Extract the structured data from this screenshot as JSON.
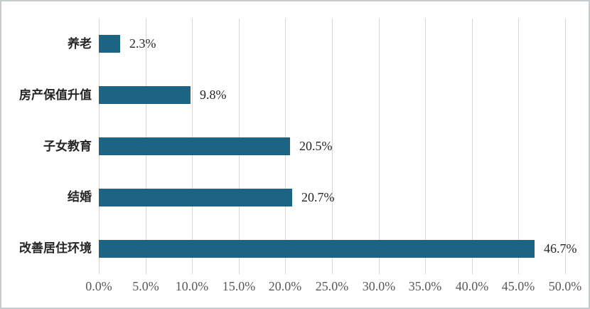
{
  "chart_data": {
    "type": "bar",
    "orientation": "horizontal",
    "title": "",
    "xlabel": "",
    "ylabel": "",
    "categories": [
      "养老",
      "房产保值升值",
      "子女教育",
      "结婚",
      "改善居住环境"
    ],
    "values": [
      2.3,
      9.8,
      20.5,
      20.7,
      46.7
    ],
    "value_labels": [
      "2.3%",
      "9.8%",
      "20.5%",
      "20.7%",
      "46.7%"
    ],
    "x_tick_labels": [
      "0.0%",
      "5.0%",
      "10.0%",
      "15.0%",
      "20.0%",
      "25.0%",
      "30.0%",
      "35.0%",
      "40.0%",
      "45.0%",
      "50.0%"
    ],
    "x_tick_values": [
      0,
      5,
      10,
      15,
      20,
      25,
      30,
      35,
      40,
      45,
      50
    ],
    "xlim": [
      0,
      50
    ],
    "grid": "vertical",
    "legend": "none",
    "colors": {
      "bar": "#1D6384",
      "gridline": "#d6d6d6",
      "value_label_text": "#262626",
      "category_label_text": "#262626",
      "tick_label_text": "#595959",
      "frame_border": "#c6cbce",
      "background": "#ffffff"
    }
  }
}
